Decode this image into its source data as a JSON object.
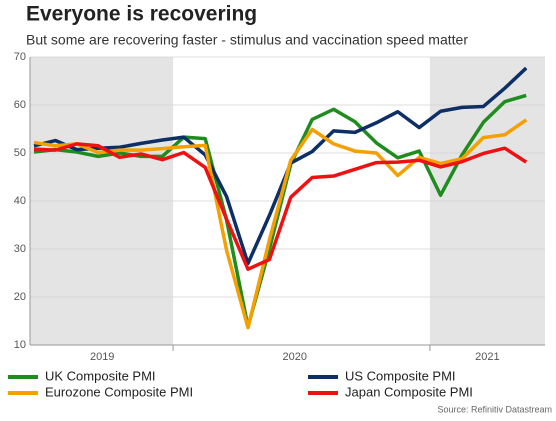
{
  "chart_data": {
    "type": "line",
    "title": "Everyone is recovering",
    "subtitle": "But some are recovering faster - stimulus and vaccination speed matter",
    "source": "Source: Refinitiv Datastream",
    "categories": [
      null,
      null,
      null,
      "2019",
      null,
      null,
      null,
      null,
      null,
      null,
      null,
      null,
      "2020",
      null,
      null,
      null,
      null,
      null,
      null,
      null,
      null,
      "2021",
      null,
      null
    ],
    "series": [
      {
        "name": "UK Composite PMI",
        "color": "#1e8c1e",
        "values": [
          50.2,
          50.7,
          50.2,
          49.3,
          50.0,
          49.3,
          49.3,
          53.3,
          53.0,
          36.0,
          13.8,
          30.0,
          47.7,
          57.0,
          59.1,
          56.5,
          52.1,
          49.0,
          50.4,
          41.2,
          49.6,
          56.4,
          60.7,
          62.0
        ]
      },
      {
        "name": "US Composite PMI",
        "color": "#0d2f66",
        "values": [
          51.5,
          52.6,
          50.7,
          51.0,
          51.2,
          52.0,
          52.7,
          53.3,
          49.6,
          40.9,
          27.0,
          37.0,
          47.9,
          50.3,
          54.6,
          54.3,
          56.3,
          58.6,
          55.3,
          58.7,
          59.5,
          59.7,
          63.5,
          67.7
        ]
      },
      {
        "name": "Eurozone Composite PMI",
        "color": "#f5a000",
        "values": [
          52.2,
          51.5,
          51.9,
          50.1,
          50.6,
          50.6,
          50.9,
          51.3,
          51.6,
          29.7,
          13.6,
          31.9,
          48.5,
          54.9,
          51.9,
          50.4,
          50.0,
          45.3,
          49.1,
          47.8,
          48.8,
          53.2,
          53.8,
          56.9
        ]
      },
      {
        "name": "Japan Composite PMI",
        "color": "#ee1111",
        "values": [
          50.8,
          50.6,
          51.9,
          51.5,
          49.1,
          49.8,
          48.6,
          50.1,
          47.0,
          36.2,
          25.8,
          27.8,
          40.8,
          44.9,
          45.2,
          46.6,
          48.0,
          48.1,
          48.5,
          47.1,
          48.2,
          49.9,
          51.0,
          48.1
        ]
      }
    ],
    "ylim": [
      10,
      70
    ],
    "yticks": [
      10,
      20,
      30,
      40,
      50,
      60,
      70
    ],
    "grid": true
  }
}
